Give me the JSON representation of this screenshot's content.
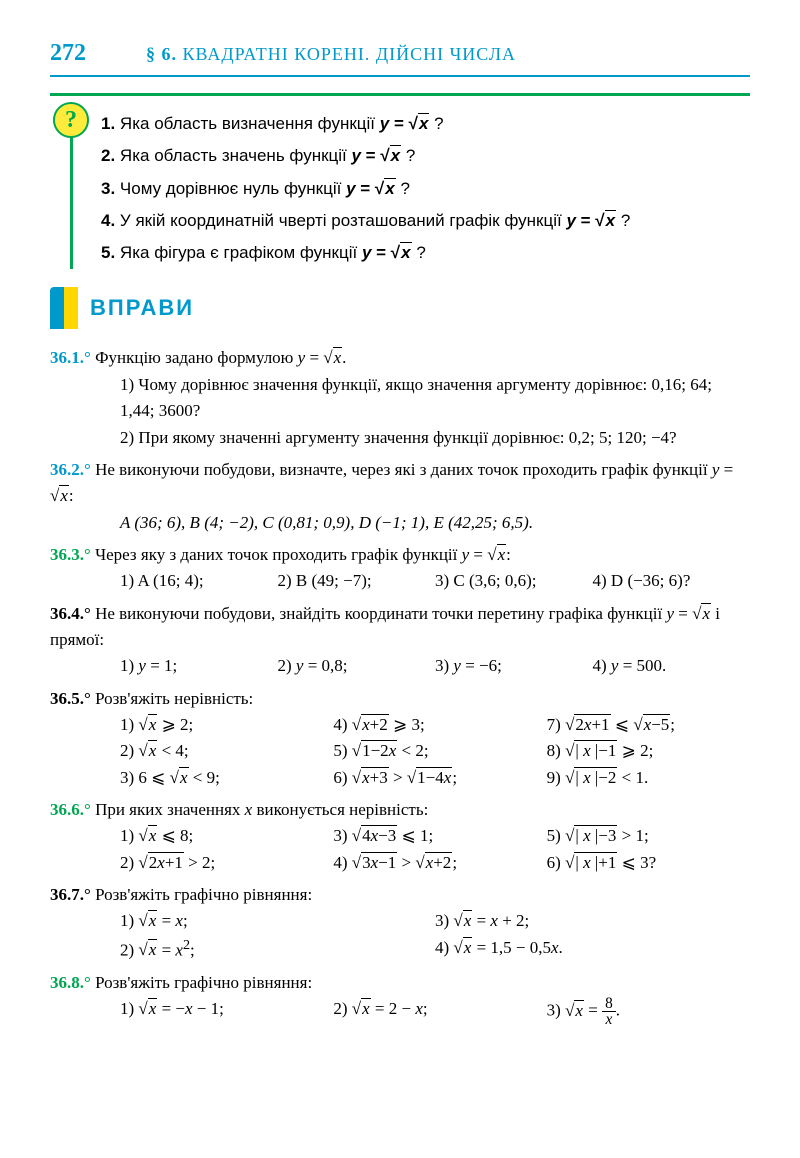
{
  "page_number": "272",
  "chapter_section": "§ 6.",
  "chapter_title": "КВАДРАТНІ КОРЕНІ. ДІЙСНІ ЧИСЛА",
  "questions": {
    "q1_num": "1.",
    "q1_text": "Яка область визначення функції ",
    "q2_num": "2.",
    "q2_text": "Яка область значень функції ",
    "q3_num": "3.",
    "q3_text": "Чому дорівнює нуль функції ",
    "q4_num": "4.",
    "q4_text": "У якій координатній чверті розташований графік функції ",
    "q5_num": "5.",
    "q5_text": "Яка фігура є графіком функції ",
    "formula": "y = √x",
    "qmark": "?"
  },
  "exercises_title": "ВПРАВИ",
  "ex": {
    "e361_num": "36.1.°",
    "e361_text": " Функцію задано формулою ",
    "e361_f": "y = √x.",
    "e361_1": "1) Чому дорівнює значення функції, якщо значення аргументу дорівнює: 0,16; 64; 1,44; 3600?",
    "e361_2": "2) При якому значенні аргументу значення функції дорівнює: 0,2; 5; 120; −4?",
    "e362_num": "36.2.°",
    "e362_text": " Не виконуючи побудови, визначте, через які з даних точок проходить графік функції ",
    "e362_f": "y = √x:",
    "e362_pts": "A (36; 6), B (4; −2), C (0,81; 0,9), D (−1; 1), E (42,25; 6,5).",
    "e363_num": "36.3.°",
    "e363_text": " Через яку з даних точок проходить графік функції ",
    "e363_f": "y = √x:",
    "e363_1": "1) A (16; 4);",
    "e363_2": "2) B (49; −7);",
    "e363_3": "3) C (3,6; 0,6);",
    "e363_4": "4) D (−36; 6)?",
    "e364_num": "36.4.°",
    "e364_text": " Не виконуючи побудови, знайдіть координати точки перетину графіка функції ",
    "e364_f": "y = √x",
    "e364_text2": " і прямої:",
    "e364_1": "1) y = 1;",
    "e364_2": "2) y = 0,8;",
    "e364_3": "3) y = −6;",
    "e364_4": "4) y = 500.",
    "e365_num": "36.5.°",
    "e365_text": " Розв'яжіть нерівність:",
    "e366_num": "36.6.°",
    "e366_text": " При яких значеннях x виконується нерівність:",
    "e367_num": "36.7.°",
    "e367_text": " Розв'яжіть графічно рівняння:",
    "e368_num": "36.8.°",
    "e368_text": " Розв'яжіть графічно рівняння:"
  }
}
